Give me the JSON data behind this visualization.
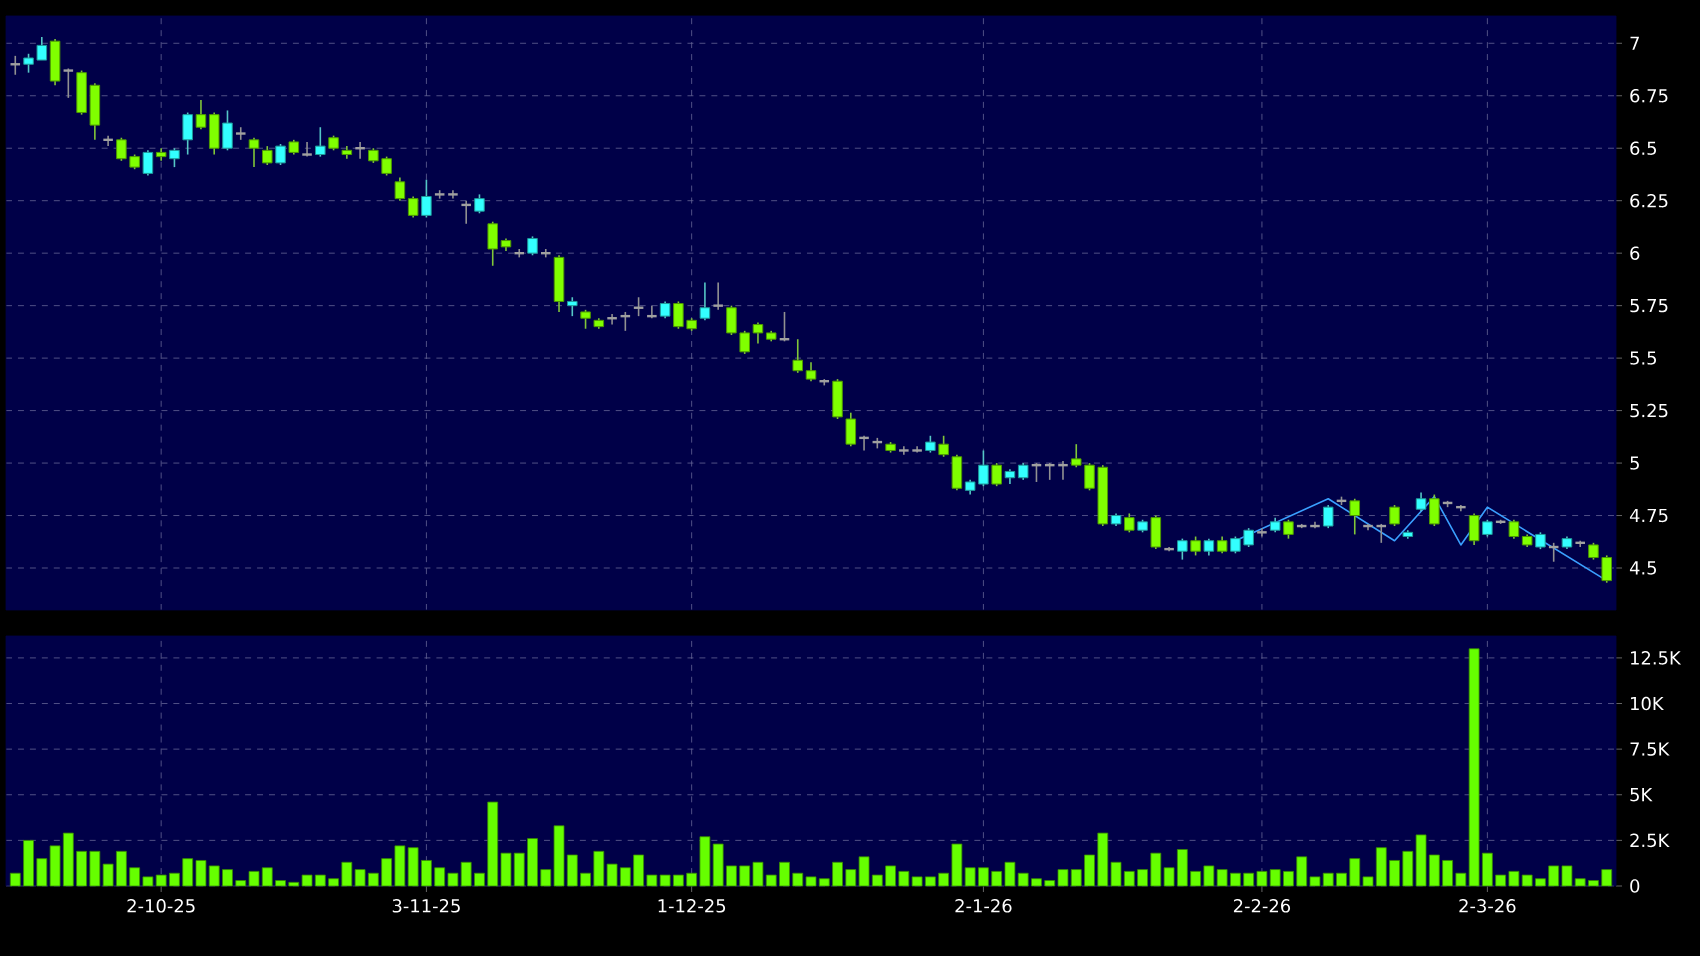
{
  "chart_data": [
    {
      "type": "candlestick",
      "grid": true,
      "tick_labels": "y",
      "categories": [
        null,
        null,
        null,
        null,
        null,
        null,
        null,
        null,
        null,
        null,
        null,
        null,
        null,
        null,
        null,
        null,
        null,
        null,
        null,
        null,
        null,
        null,
        null,
        null,
        null,
        null,
        null,
        null,
        null,
        null,
        null,
        null,
        null,
        null,
        null,
        null,
        null,
        null,
        null,
        null,
        null,
        null,
        null,
        null,
        null,
        null,
        null,
        null,
        null,
        null,
        null,
        null,
        null,
        null,
        null,
        null,
        null,
        null,
        null,
        null,
        null,
        null,
        null,
        null,
        null,
        null,
        null,
        null,
        null,
        null,
        null,
        null,
        null,
        null,
        null,
        null,
        null,
        null,
        null,
        null,
        null,
        null,
        null,
        null,
        null,
        null,
        null,
        null,
        null,
        null,
        null,
        null,
        null,
        null,
        null,
        null,
        null,
        null,
        null,
        null,
        null,
        null,
        null,
        null,
        null,
        null,
        null,
        null,
        null,
        null,
        null,
        null,
        null,
        null,
        null,
        null,
        null,
        null,
        null,
        null,
        null
      ],
      "ohlc": [
        [
          6.9,
          6.94,
          6.85,
          6.9
        ],
        [
          6.9,
          6.95,
          6.86,
          6.93
        ],
        [
          6.92,
          7.03,
          6.92,
          6.99
        ],
        [
          7.01,
          7.02,
          6.8,
          6.82
        ],
        [
          6.87,
          6.88,
          6.74,
          6.87
        ],
        [
          6.86,
          6.87,
          6.66,
          6.67
        ],
        [
          6.8,
          6.81,
          6.54,
          6.61
        ],
        [
          6.54,
          6.56,
          6.51,
          6.54
        ],
        [
          6.54,
          6.55,
          6.44,
          6.45
        ],
        [
          6.46,
          6.47,
          6.4,
          6.41
        ],
        [
          6.38,
          6.49,
          6.37,
          6.48
        ],
        [
          6.48,
          6.5,
          6.44,
          6.46
        ],
        [
          6.45,
          6.5,
          6.41,
          6.49
        ],
        [
          6.54,
          6.67,
          6.47,
          6.66
        ],
        [
          6.66,
          6.73,
          6.59,
          6.6
        ],
        [
          6.66,
          6.67,
          6.47,
          6.5
        ],
        [
          6.5,
          6.68,
          6.49,
          6.62
        ],
        [
          6.57,
          6.6,
          6.54,
          6.57
        ],
        [
          6.54,
          6.55,
          6.41,
          6.5
        ],
        [
          6.49,
          6.51,
          6.42,
          6.43
        ],
        [
          6.43,
          6.52,
          6.42,
          6.51
        ],
        [
          6.53,
          6.54,
          6.47,
          6.48
        ],
        [
          6.47,
          6.53,
          6.46,
          6.47
        ],
        [
          6.47,
          6.6,
          6.46,
          6.51
        ],
        [
          6.55,
          6.56,
          6.49,
          6.5
        ],
        [
          6.49,
          6.51,
          6.45,
          6.47
        ],
        [
          6.5,
          6.53,
          6.45,
          6.5
        ],
        [
          6.49,
          6.5,
          6.43,
          6.44
        ],
        [
          6.45,
          6.46,
          6.37,
          6.38
        ],
        [
          6.34,
          6.36,
          6.25,
          6.26
        ],
        [
          6.26,
          6.27,
          6.17,
          6.18
        ],
        [
          6.18,
          6.35,
          6.17,
          6.27
        ],
        [
          6.28,
          6.3,
          6.26,
          6.28
        ],
        [
          6.28,
          6.3,
          6.26,
          6.28
        ],
        [
          6.23,
          6.25,
          6.14,
          6.23
        ],
        [
          6.2,
          6.28,
          6.19,
          6.26
        ],
        [
          6.14,
          6.15,
          5.94,
          6.02
        ],
        [
          6.06,
          6.07,
          6.01,
          6.03
        ],
        [
          6.0,
          6.02,
          5.98,
          6.0
        ],
        [
          6.0,
          6.08,
          5.99,
          6.07
        ],
        [
          6.0,
          6.02,
          5.98,
          6.0
        ],
        [
          5.98,
          5.99,
          5.72,
          5.77
        ],
        [
          5.75,
          5.79,
          5.7,
          5.77
        ],
        [
          5.72,
          5.73,
          5.64,
          5.69
        ],
        [
          5.68,
          5.69,
          5.64,
          5.65
        ],
        [
          5.69,
          5.71,
          5.66,
          5.69
        ],
        [
          5.7,
          5.72,
          5.63,
          5.7
        ],
        [
          5.74,
          5.79,
          5.7,
          5.74
        ],
        [
          5.7,
          5.75,
          5.69,
          5.7
        ],
        [
          5.7,
          5.77,
          5.69,
          5.76
        ],
        [
          5.76,
          5.77,
          5.64,
          5.65
        ],
        [
          5.68,
          5.69,
          5.63,
          5.64
        ],
        [
          5.69,
          5.86,
          5.68,
          5.74
        ],
        [
          5.75,
          5.86,
          5.73,
          5.75
        ],
        [
          5.74,
          5.75,
          5.61,
          5.62
        ],
        [
          5.62,
          5.63,
          5.52,
          5.53
        ],
        [
          5.66,
          5.67,
          5.57,
          5.62
        ],
        [
          5.62,
          5.63,
          5.58,
          5.59
        ],
        [
          5.59,
          5.72,
          5.58,
          5.59
        ],
        [
          5.49,
          5.59,
          5.43,
          5.44
        ],
        [
          5.44,
          5.48,
          5.39,
          5.4
        ],
        [
          5.39,
          5.4,
          5.37,
          5.39
        ],
        [
          5.39,
          5.4,
          5.21,
          5.22
        ],
        [
          5.21,
          5.24,
          5.08,
          5.09
        ],
        [
          5.12,
          5.13,
          5.06,
          5.12
        ],
        [
          5.1,
          5.12,
          5.07,
          5.1
        ],
        [
          5.09,
          5.1,
          5.05,
          5.06
        ],
        [
          5.06,
          5.08,
          5.04,
          5.06
        ],
        [
          5.06,
          5.08,
          5.05,
          5.06
        ],
        [
          5.06,
          5.13,
          5.05,
          5.1
        ],
        [
          5.09,
          5.13,
          5.03,
          5.04
        ],
        [
          5.03,
          5.04,
          4.87,
          4.88
        ],
        [
          4.87,
          4.92,
          4.85,
          4.91
        ],
        [
          4.9,
          5.06,
          4.89,
          4.99
        ],
        [
          4.99,
          5.0,
          4.89,
          4.9
        ],
        [
          4.93,
          4.97,
          4.9,
          4.96
        ],
        [
          4.93,
          5.0,
          4.92,
          4.99
        ],
        [
          4.99,
          5.0,
          4.91,
          4.99
        ],
        [
          4.99,
          5.0,
          4.92,
          4.99
        ],
        [
          4.99,
          5.01,
          4.92,
          4.99
        ],
        [
          5.02,
          5.09,
          4.98,
          4.99
        ],
        [
          4.99,
          5.0,
          4.87,
          4.88
        ],
        [
          4.98,
          4.99,
          4.7,
          4.71
        ],
        [
          4.71,
          4.76,
          4.7,
          4.75
        ],
        [
          4.74,
          4.76,
          4.67,
          4.68
        ],
        [
          4.68,
          4.73,
          4.67,
          4.72
        ],
        [
          4.74,
          4.75,
          4.59,
          4.6
        ],
        [
          4.59,
          4.6,
          4.58,
          4.59
        ],
        [
          4.58,
          4.64,
          4.54,
          4.63
        ],
        [
          4.63,
          4.65,
          4.56,
          4.58
        ],
        [
          4.58,
          4.64,
          4.56,
          4.63
        ],
        [
          4.63,
          4.65,
          4.57,
          4.58
        ],
        [
          4.58,
          4.65,
          4.57,
          4.64
        ],
        [
          4.61,
          4.69,
          4.6,
          4.68
        ],
        [
          4.67,
          4.69,
          4.65,
          4.67
        ],
        [
          4.68,
          4.74,
          4.67,
          4.72
        ],
        [
          4.72,
          4.73,
          4.64,
          4.66
        ],
        [
          4.7,
          4.71,
          4.69,
          4.7
        ],
        [
          4.7,
          4.72,
          4.69,
          4.7
        ],
        [
          4.7,
          4.8,
          4.69,
          4.79
        ],
        [
          4.82,
          4.84,
          4.8,
          4.82
        ],
        [
          4.82,
          4.83,
          4.66,
          4.75
        ],
        [
          4.7,
          4.71,
          4.68,
          4.7
        ],
        [
          4.7,
          4.71,
          4.62,
          4.7
        ],
        [
          4.79,
          4.8,
          4.7,
          4.71
        ],
        [
          4.65,
          4.68,
          4.64,
          4.67
        ],
        [
          4.78,
          4.86,
          4.77,
          4.83
        ],
        [
          4.83,
          4.85,
          4.7,
          4.71
        ],
        [
          4.81,
          4.82,
          4.79,
          4.81
        ],
        [
          4.79,
          4.8,
          4.77,
          4.79
        ],
        [
          4.75,
          4.76,
          4.61,
          4.63
        ],
        [
          4.66,
          4.73,
          4.65,
          4.72
        ],
        [
          4.72,
          4.73,
          4.71,
          4.72
        ],
        [
          4.72,
          4.73,
          4.64,
          4.65
        ],
        [
          4.65,
          4.66,
          4.6,
          4.61
        ],
        [
          4.6,
          4.67,
          4.59,
          4.66
        ],
        [
          4.6,
          4.62,
          4.53,
          4.6
        ],
        [
          4.6,
          4.65,
          4.59,
          4.64
        ],
        [
          4.62,
          4.63,
          4.6,
          4.62
        ],
        [
          4.61,
          4.62,
          4.54,
          4.55
        ],
        [
          4.55,
          4.56,
          4.43,
          4.44
        ]
      ],
      "colors": [
        "#a0a0a0",
        "#33ffff",
        "#33ffff",
        "#80ff00",
        "#a0a0a0",
        "#80ff00",
        "#80ff00",
        "#a0a0a0",
        "#80ff00",
        "#80ff00",
        "#33ffff",
        "#80ff00",
        "#33ffff",
        "#33ffff",
        "#80ff00",
        "#80ff00",
        "#33ffff",
        "#a0a0a0",
        "#80ff00",
        "#80ff00",
        "#33ffff",
        "#80ff00",
        "#a0a0a0",
        "#33ffff",
        "#80ff00",
        "#80ff00",
        "#a0a0a0",
        "#80ff00",
        "#80ff00",
        "#80ff00",
        "#80ff00",
        "#33ffff",
        "#a0a0a0",
        "#a0a0a0",
        "#a0a0a0",
        "#33ffff",
        "#80ff00",
        "#80ff00",
        "#a0a0a0",
        "#33ffff",
        "#a0a0a0",
        "#80ff00",
        "#33ffff",
        "#80ff00",
        "#80ff00",
        "#a0a0a0",
        "#a0a0a0",
        "#a0a0a0",
        "#a0a0a0",
        "#33ffff",
        "#80ff00",
        "#80ff00",
        "#33ffff",
        "#a0a0a0",
        "#80ff00",
        "#80ff00",
        "#80ff00",
        "#80ff00",
        "#a0a0a0",
        "#80ff00",
        "#80ff00",
        "#a0a0a0",
        "#80ff00",
        "#80ff00",
        "#a0a0a0",
        "#a0a0a0",
        "#80ff00",
        "#a0a0a0",
        "#a0a0a0",
        "#33ffff",
        "#80ff00",
        "#80ff00",
        "#33ffff",
        "#33ffff",
        "#80ff00",
        "#33ffff",
        "#33ffff",
        "#a0a0a0",
        "#a0a0a0",
        "#a0a0a0",
        "#80ff00",
        "#80ff00",
        "#80ff00",
        "#33ffff",
        "#80ff00",
        "#33ffff",
        "#80ff00",
        "#a0a0a0",
        "#33ffff",
        "#80ff00",
        "#33ffff",
        "#80ff00",
        "#33ffff",
        "#33ffff",
        "#a0a0a0",
        "#33ffff",
        "#80ff00",
        "#a0a0a0",
        "#a0a0a0",
        "#33ffff",
        "#a0a0a0",
        "#80ff00",
        "#a0a0a0",
        "#a0a0a0",
        "#80ff00",
        "#33ffff",
        "#33ffff",
        "#80ff00",
        "#a0a0a0",
        "#a0a0a0",
        "#80ff00",
        "#33ffff",
        "#a0a0a0",
        "#80ff00",
        "#80ff00",
        "#33ffff",
        "#a0a0a0",
        "#33ffff",
        "#a0a0a0",
        "#80ff00",
        "#80ff00"
      ],
      "series": [
        {
          "type": "line",
          "color": "#3aa0ff",
          "values": [
            null,
            null,
            null,
            null,
            null,
            null,
            null,
            null,
            null,
            null,
            null,
            null,
            null,
            null,
            null,
            null,
            null,
            null,
            null,
            null,
            null,
            null,
            null,
            null,
            null,
            null,
            null,
            null,
            null,
            null,
            null,
            null,
            null,
            null,
            null,
            null,
            null,
            null,
            null,
            null,
            null,
            null,
            null,
            null,
            null,
            null,
            null,
            null,
            null,
            null,
            null,
            null,
            null,
            null,
            null,
            null,
            null,
            null,
            null,
            null,
            null,
            null,
            null,
            null,
            null,
            null,
            null,
            null,
            null,
            null,
            null,
            null,
            null,
            null,
            null,
            null,
            null,
            null,
            null,
            null,
            null,
            null,
            null,
            null,
            null,
            null,
            null,
            null,
            null,
            null,
            null,
            null,
            4.63,
            null,
            null,
            null,
            null,
            null,
            null,
            4.83,
            null,
            null,
            null,
            null,
            4.63,
            null,
            null,
            4.84,
            null,
            4.61,
            null,
            4.79,
            null,
            null,
            null,
            null,
            null,
            null,
            null,
            null,
            4.44
          ]
        }
      ],
      "ylim": [
        4.3,
        7.13
      ],
      "yticks": [
        4.5,
        4.75,
        5,
        5.25,
        5.5,
        5.75,
        6,
        6.25,
        6.5,
        6.75,
        7
      ]
    },
    {
      "type": "bar",
      "grid": true,
      "color": "#66ff00",
      "categories": [
        null,
        null,
        null,
        null,
        null,
        null,
        null,
        null,
        null,
        null,
        null,
        "2-10-25",
        null,
        null,
        null,
        null,
        null,
        null,
        null,
        null,
        null,
        null,
        null,
        null,
        null,
        null,
        null,
        null,
        null,
        null,
        null,
        "3-11-25",
        null,
        null,
        null,
        null,
        null,
        null,
        null,
        null,
        null,
        null,
        null,
        null,
        null,
        null,
        null,
        null,
        null,
        null,
        null,
        "1-12-25",
        null,
        null,
        null,
        null,
        null,
        null,
        null,
        null,
        null,
        null,
        null,
        null,
        null,
        null,
        null,
        null,
        null,
        null,
        null,
        null,
        null,
        "2-1-26",
        null,
        null,
        null,
        null,
        null,
        null,
        null,
        null,
        null,
        null,
        null,
        null,
        null,
        null,
        null,
        null,
        null,
        null,
        null,
        null,
        "2-2-26",
        null,
        null,
        null,
        null,
        null,
        null,
        null,
        null,
        null,
        null,
        null,
        null,
        null,
        null,
        null,
        null,
        "2-3-26",
        null,
        null,
        null,
        null,
        null,
        null,
        null,
        null,
        null
      ],
      "values": [
        0.7,
        2.5,
        1.5,
        2.2,
        2.9,
        1.9,
        1.9,
        1.2,
        1.9,
        1.0,
        0.5,
        0.6,
        0.7,
        1.5,
        1.4,
        1.1,
        0.9,
        0.3,
        0.8,
        1.0,
        0.3,
        0.2,
        0.6,
        0.6,
        0.4,
        1.3,
        0.9,
        0.7,
        1.5,
        2.2,
        2.1,
        1.4,
        1.0,
        0.7,
        1.3,
        0.7,
        4.6,
        1.8,
        1.8,
        2.6,
        0.9,
        3.3,
        1.7,
        0.7,
        1.9,
        1.2,
        1.0,
        1.7,
        0.6,
        0.6,
        0.6,
        0.7,
        2.7,
        2.3,
        1.1,
        1.1,
        1.3,
        0.6,
        1.3,
        0.7,
        0.5,
        0.4,
        1.3,
        0.9,
        1.6,
        0.6,
        1.1,
        0.8,
        0.5,
        0.5,
        0.7,
        2.3,
        1.0,
        1.0,
        0.8,
        1.3,
        0.7,
        0.4,
        0.3,
        0.9,
        0.9,
        1.7,
        2.9,
        1.3,
        0.8,
        0.9,
        1.8,
        1.0,
        2.0,
        0.8,
        1.1,
        0.9,
        0.7,
        0.7,
        0.8,
        0.9,
        0.8,
        1.6,
        0.5,
        0.7,
        0.7,
        1.5,
        0.5,
        2.1,
        1.4,
        1.9,
        2.8,
        1.7,
        1.4,
        0.7,
        13.0,
        1.8,
        0.6,
        0.8,
        0.6,
        0.4,
        1.1,
        1.1,
        0.4,
        0.3,
        0.9
      ],
      "ylim": [
        0,
        13.7
      ],
      "yticks": [
        0,
        {
          "value": 2.5,
          "label": "2.5K"
        },
        {
          "value": 5,
          "label": "5K"
        },
        {
          "value": 7.5,
          "label": "7.5K"
        },
        {
          "value": 10,
          "label": "10K"
        },
        {
          "value": 12.5,
          "label": "12.5K"
        }
      ]
    }
  ]
}
